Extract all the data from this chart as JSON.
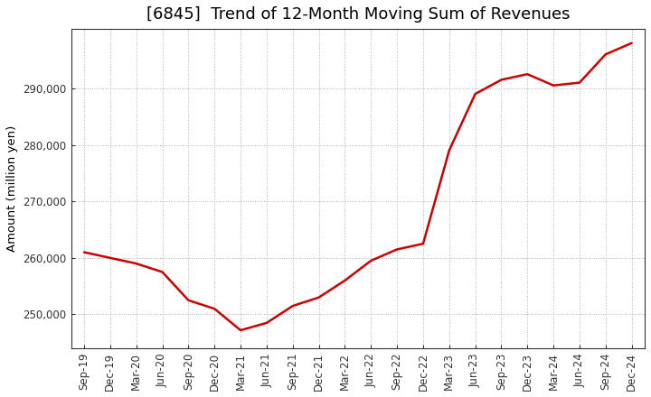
{
  "title": "[6845]  Trend of 12-Month Moving Sum of Revenues",
  "ylabel": "Amount (million yen)",
  "line_color": "#cc0000",
  "background_color": "#ffffff",
  "plot_bg_color": "#ffffff",
  "grid_color": "#999999",
  "x_labels": [
    "Sep-19",
    "Dec-19",
    "Mar-20",
    "Jun-20",
    "Sep-20",
    "Dec-20",
    "Mar-21",
    "Jun-21",
    "Sep-21",
    "Dec-21",
    "Mar-22",
    "Jun-22",
    "Sep-22",
    "Dec-22",
    "Mar-23",
    "Jun-23",
    "Sep-23",
    "Dec-23",
    "Mar-24",
    "Jun-24",
    "Sep-24",
    "Dec-24"
  ],
  "values": [
    261000,
    260000,
    259000,
    257500,
    252500,
    251000,
    247200,
    248500,
    251500,
    253000,
    256000,
    259500,
    261500,
    262500,
    279000,
    289000,
    291500,
    292500,
    290500,
    291000,
    296000,
    298000
  ],
  "ylim_min": 244000,
  "ylim_max": 300500,
  "yticks": [
    250000,
    260000,
    270000,
    280000,
    290000
  ],
  "title_fontsize": 13,
  "tick_fontsize": 8.5,
  "ylabel_fontsize": 9.5
}
